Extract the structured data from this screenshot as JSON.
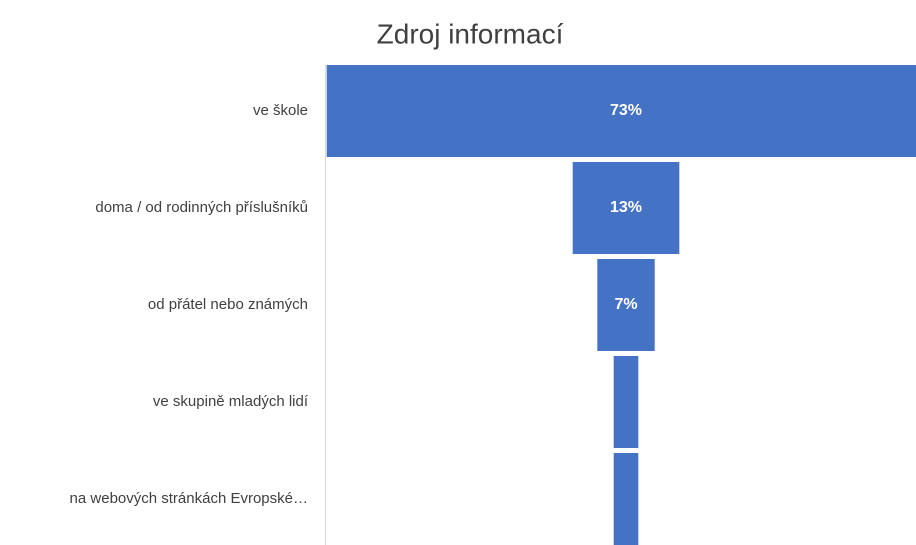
{
  "chart_data": {
    "type": "funnel",
    "title": "Zdroj informací",
    "categories": [
      "ve škole",
      "doma / od rodinných příslušníků",
      "od přátel nebo známých",
      "ve skupině mladých lidí",
      "na webových stránkách Evropské…"
    ],
    "values": [
      73,
      13,
      7,
      3,
      3
    ],
    "value_labels": [
      "73%",
      "13%",
      "7%",
      null,
      null
    ],
    "color": "#4472c4"
  }
}
